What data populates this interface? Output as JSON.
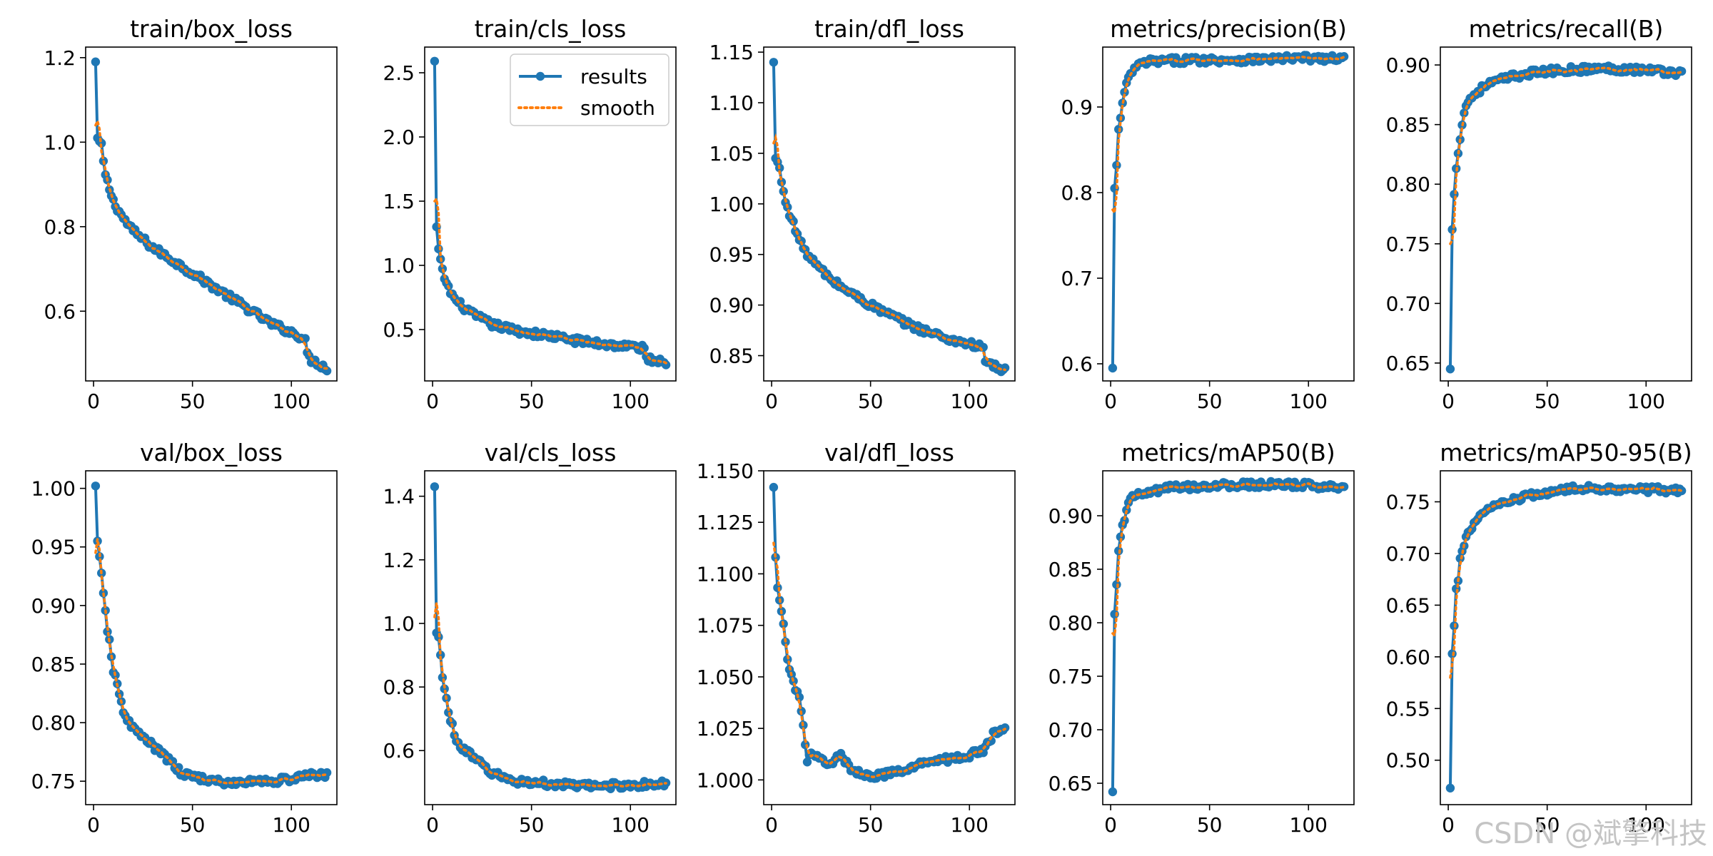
{
  "watermark": "CSDN @斌擎科技",
  "colors": {
    "results": "#1f77b4",
    "smooth": "#ff7f0e"
  },
  "chart_data": [
    {
      "type": "line",
      "title": "train/box_loss",
      "x_range": [
        1,
        118
      ],
      "xlim": [
        -4,
        123
      ],
      "ylim": [
        0.435,
        1.225
      ],
      "xticks": [
        0,
        50,
        100
      ],
      "yticks": [
        0.6,
        0.8,
        1.0,
        1.2
      ],
      "ytick_labels": [
        "0.6",
        "0.8",
        "1.0",
        "1.2"
      ],
      "keypoints": [
        [
          1,
          1.19
        ],
        [
          2,
          1.01
        ],
        [
          4,
          0.99
        ],
        [
          6,
          0.92
        ],
        [
          10,
          0.86
        ],
        [
          15,
          0.82
        ],
        [
          20,
          0.79
        ],
        [
          30,
          0.75
        ],
        [
          40,
          0.72
        ],
        [
          50,
          0.69
        ],
        [
          60,
          0.66
        ],
        [
          70,
          0.63
        ],
        [
          80,
          0.6
        ],
        [
          90,
          0.57
        ],
        [
          100,
          0.55
        ],
        [
          107,
          0.535
        ],
        [
          108,
          0.495
        ],
        [
          110,
          0.485
        ],
        [
          114,
          0.475
        ],
        [
          118,
          0.465
        ]
      ],
      "smooth_start": 1.04,
      "series": [
        {
          "name": "results"
        },
        {
          "name": "smooth"
        }
      ]
    },
    {
      "type": "line",
      "title": "train/cls_loss",
      "x_range": [
        1,
        118
      ],
      "xlim": [
        -4,
        123
      ],
      "ylim": [
        0.1,
        2.7
      ],
      "xticks": [
        0,
        50,
        100
      ],
      "yticks": [
        0.5,
        1.0,
        1.5,
        2.0,
        2.5
      ],
      "ytick_labels": [
        "0.5",
        "1.0",
        "1.5",
        "2.0",
        "2.5"
      ],
      "keypoints": [
        [
          1,
          2.59
        ],
        [
          2,
          1.3
        ],
        [
          3,
          1.12
        ],
        [
          5,
          0.95
        ],
        [
          8,
          0.82
        ],
        [
          12,
          0.72
        ],
        [
          20,
          0.62
        ],
        [
          30,
          0.54
        ],
        [
          40,
          0.5
        ],
        [
          50,
          0.47
        ],
        [
          60,
          0.45
        ],
        [
          70,
          0.42
        ],
        [
          80,
          0.4
        ],
        [
          90,
          0.38
        ],
        [
          100,
          0.37
        ],
        [
          107,
          0.35
        ],
        [
          108,
          0.28
        ],
        [
          112,
          0.26
        ],
        [
          118,
          0.25
        ]
      ],
      "smooth_start": 1.5,
      "legend": {
        "entries": [
          "results",
          "smooth"
        ],
        "position": "upper right"
      },
      "series": [
        {
          "name": "results"
        },
        {
          "name": "smooth"
        }
      ]
    },
    {
      "type": "line",
      "title": "train/dfl_loss",
      "x_range": [
        1,
        118
      ],
      "xlim": [
        -4,
        123
      ],
      "ylim": [
        0.825,
        1.155
      ],
      "xticks": [
        0,
        50,
        100
      ],
      "yticks": [
        0.85,
        0.9,
        0.95,
        1.0,
        1.05,
        1.1,
        1.15
      ],
      "ytick_labels": [
        "0.85",
        "0.90",
        "0.95",
        "1.00",
        "1.05",
        "1.10",
        "1.15"
      ],
      "keypoints": [
        [
          1,
          1.14
        ],
        [
          2,
          1.045
        ],
        [
          4,
          1.035
        ],
        [
          6,
          1.01
        ],
        [
          10,
          0.985
        ],
        [
          15,
          0.96
        ],
        [
          20,
          0.945
        ],
        [
          30,
          0.925
        ],
        [
          40,
          0.912
        ],
        [
          50,
          0.9
        ],
        [
          60,
          0.89
        ],
        [
          70,
          0.88
        ],
        [
          80,
          0.873
        ],
        [
          90,
          0.866
        ],
        [
          100,
          0.862
        ],
        [
          107,
          0.857
        ],
        [
          108,
          0.845
        ],
        [
          112,
          0.84
        ],
        [
          118,
          0.835
        ]
      ],
      "smooth_start": 1.06,
      "series": [
        {
          "name": "results"
        },
        {
          "name": "smooth"
        }
      ]
    },
    {
      "type": "line",
      "title": "metrics/precision(B)",
      "x_range": [
        1,
        118
      ],
      "xlim": [
        -4,
        123
      ],
      "ylim": [
        0.58,
        0.97
      ],
      "xticks": [
        0,
        50,
        100
      ],
      "yticks": [
        0.6,
        0.7,
        0.8,
        0.9
      ],
      "ytick_labels": [
        "0.6",
        "0.7",
        "0.8",
        "0.9"
      ],
      "keypoints": [
        [
          1,
          0.595
        ],
        [
          2,
          0.805
        ],
        [
          3,
          0.83
        ],
        [
          4,
          0.875
        ],
        [
          5,
          0.885
        ],
        [
          6,
          0.905
        ],
        [
          8,
          0.925
        ],
        [
          10,
          0.94
        ],
        [
          15,
          0.95
        ],
        [
          20,
          0.953
        ],
        [
          40,
          0.955
        ],
        [
          60,
          0.955
        ],
        [
          80,
          0.956
        ],
        [
          100,
          0.957
        ],
        [
          118,
          0.956
        ]
      ],
      "smooth_start": 0.78,
      "series": [
        {
          "name": "results"
        },
        {
          "name": "smooth"
        }
      ]
    },
    {
      "type": "line",
      "title": "metrics/recall(B)",
      "x_range": [
        1,
        118
      ],
      "xlim": [
        -4,
        123
      ],
      "ylim": [
        0.635,
        0.915
      ],
      "xticks": [
        0,
        50,
        100
      ],
      "yticks": [
        0.65,
        0.7,
        0.75,
        0.8,
        0.85,
        0.9
      ],
      "ytick_labels": [
        "0.65",
        "0.70",
        "0.75",
        "0.80",
        "0.85",
        "0.90"
      ],
      "keypoints": [
        [
          1,
          0.645
        ],
        [
          2,
          0.762
        ],
        [
          3,
          0.79
        ],
        [
          4,
          0.815
        ],
        [
          6,
          0.84
        ],
        [
          8,
          0.86
        ],
        [
          10,
          0.87
        ],
        [
          15,
          0.878
        ],
        [
          20,
          0.884
        ],
        [
          30,
          0.889
        ],
        [
          40,
          0.893
        ],
        [
          60,
          0.896
        ],
        [
          80,
          0.897
        ],
        [
          100,
          0.896
        ],
        [
          118,
          0.893
        ]
      ],
      "smooth_start": 0.75,
      "series": [
        {
          "name": "results"
        },
        {
          "name": "smooth"
        }
      ]
    },
    {
      "type": "line",
      "title": "val/box_loss",
      "x_range": [
        1,
        118
      ],
      "xlim": [
        -4,
        123
      ],
      "ylim": [
        0.73,
        1.015
      ],
      "xticks": [
        0,
        50,
        100
      ],
      "yticks": [
        0.75,
        0.8,
        0.85,
        0.9,
        0.95,
        1.0
      ],
      "ytick_labels": [
        "0.75",
        "0.80",
        "0.85",
        "0.90",
        "0.95",
        "1.00"
      ],
      "keypoints": [
        [
          1,
          1.002
        ],
        [
          2,
          0.955
        ],
        [
          3,
          0.94
        ],
        [
          5,
          0.91
        ],
        [
          7,
          0.88
        ],
        [
          10,
          0.845
        ],
        [
          15,
          0.81
        ],
        [
          20,
          0.795
        ],
        [
          30,
          0.78
        ],
        [
          40,
          0.765
        ],
        [
          45,
          0.755
        ],
        [
          50,
          0.755
        ],
        [
          60,
          0.75
        ],
        [
          70,
          0.748
        ],
        [
          80,
          0.75
        ],
        [
          90,
          0.75
        ],
        [
          100,
          0.752
        ],
        [
          110,
          0.755
        ],
        [
          118,
          0.756
        ]
      ],
      "smooth_start": 0.945,
      "series": [
        {
          "name": "results"
        },
        {
          "name": "smooth"
        }
      ]
    },
    {
      "type": "line",
      "title": "val/cls_loss",
      "x_range": [
        1,
        118
      ],
      "xlim": [
        -4,
        123
      ],
      "ylim": [
        0.43,
        1.48
      ],
      "xticks": [
        0,
        50,
        100
      ],
      "yticks": [
        0.6,
        0.8,
        1.0,
        1.2,
        1.4
      ],
      "ytick_labels": [
        "0.6",
        "0.8",
        "1.0",
        "1.2",
        "1.4"
      ],
      "keypoints": [
        [
          1,
          1.43
        ],
        [
          2,
          0.97
        ],
        [
          3,
          0.95
        ],
        [
          5,
          0.84
        ],
        [
          8,
          0.72
        ],
        [
          12,
          0.63
        ],
        [
          20,
          0.58
        ],
        [
          30,
          0.53
        ],
        [
          40,
          0.505
        ],
        [
          50,
          0.5
        ],
        [
          60,
          0.495
        ],
        [
          70,
          0.49
        ],
        [
          80,
          0.488
        ],
        [
          90,
          0.49
        ],
        [
          100,
          0.492
        ],
        [
          118,
          0.495
        ]
      ],
      "smooth_start": 1.02,
      "series": [
        {
          "name": "results"
        },
        {
          "name": "smooth"
        }
      ]
    },
    {
      "type": "line",
      "title": "val/dfl_loss",
      "x_range": [
        1,
        118
      ],
      "xlim": [
        -4,
        123
      ],
      "ylim": [
        0.988,
        1.15
      ],
      "xticks": [
        0,
        50,
        100
      ],
      "yticks": [
        1.0,
        1.025,
        1.05,
        1.075,
        1.1,
        1.125,
        1.15
      ],
      "ytick_labels": [
        "1.000",
        "1.025",
        "1.050",
        "1.075",
        "1.100",
        "1.125",
        "1.150"
      ],
      "keypoints": [
        [
          1,
          1.142
        ],
        [
          2,
          1.108
        ],
        [
          3,
          1.092
        ],
        [
          5,
          1.082
        ],
        [
          8,
          1.06
        ],
        [
          10,
          1.05
        ],
        [
          14,
          1.04
        ],
        [
          18,
          1.01
        ],
        [
          20,
          1.012
        ],
        [
          25,
          1.01
        ],
        [
          30,
          1.008
        ],
        [
          35,
          1.012
        ],
        [
          40,
          1.005
        ],
        [
          50,
          1.002
        ],
        [
          60,
          1.003
        ],
        [
          70,
          1.005
        ],
        [
          80,
          1.01
        ],
        [
          90,
          1.01
        ],
        [
          100,
          1.012
        ],
        [
          108,
          1.015
        ],
        [
          112,
          1.022
        ],
        [
          118,
          1.025
        ]
      ],
      "smooth_start": 1.115,
      "series": [
        {
          "name": "results"
        },
        {
          "name": "smooth"
        }
      ]
    },
    {
      "type": "line",
      "title": "metrics/mAP50(B)",
      "x_range": [
        1,
        118
      ],
      "xlim": [
        -4,
        123
      ],
      "ylim": [
        0.63,
        0.942
      ],
      "xticks": [
        0,
        50,
        100
      ],
      "yticks": [
        0.65,
        0.7,
        0.75,
        0.8,
        0.85,
        0.9
      ],
      "ytick_labels": [
        "0.65",
        "0.70",
        "0.75",
        "0.80",
        "0.85",
        "0.90"
      ],
      "keypoints": [
        [
          1,
          0.642
        ],
        [
          2,
          0.808
        ],
        [
          3,
          0.833
        ],
        [
          4,
          0.868
        ],
        [
          5,
          0.878
        ],
        [
          6,
          0.892
        ],
        [
          8,
          0.905
        ],
        [
          10,
          0.915
        ],
        [
          15,
          0.92
        ],
        [
          20,
          0.922
        ],
        [
          30,
          0.926
        ],
        [
          50,
          0.928
        ],
        [
          70,
          0.929
        ],
        [
          90,
          0.929
        ],
        [
          118,
          0.927
        ]
      ],
      "smooth_start": 0.79,
      "series": [
        {
          "name": "results"
        },
        {
          "name": "smooth"
        }
      ]
    },
    {
      "type": "line",
      "title": "metrics/mAP50-95(B)",
      "x_range": [
        1,
        118
      ],
      "xlim": [
        -4,
        123
      ],
      "ylim": [
        0.457,
        0.78
      ],
      "xticks": [
        0,
        50,
        100
      ],
      "yticks": [
        0.5,
        0.55,
        0.6,
        0.65,
        0.7,
        0.75
      ],
      "ytick_labels": [
        "0.50",
        "0.55",
        "0.60",
        "0.65",
        "0.70",
        "0.75"
      ],
      "keypoints": [
        [
          1,
          0.473
        ],
        [
          2,
          0.603
        ],
        [
          3,
          0.627
        ],
        [
          4,
          0.668
        ],
        [
          5,
          0.675
        ],
        [
          6,
          0.692
        ],
        [
          8,
          0.71
        ],
        [
          10,
          0.72
        ],
        [
          15,
          0.735
        ],
        [
          20,
          0.742
        ],
        [
          30,
          0.75
        ],
        [
          40,
          0.755
        ],
        [
          50,
          0.759
        ],
        [
          60,
          0.762
        ],
        [
          70,
          0.763
        ],
        [
          80,
          0.763
        ],
        [
          100,
          0.762
        ],
        [
          118,
          0.761
        ]
      ],
      "smooth_start": 0.58,
      "series": [
        {
          "name": "results"
        },
        {
          "name": "smooth"
        }
      ]
    }
  ]
}
